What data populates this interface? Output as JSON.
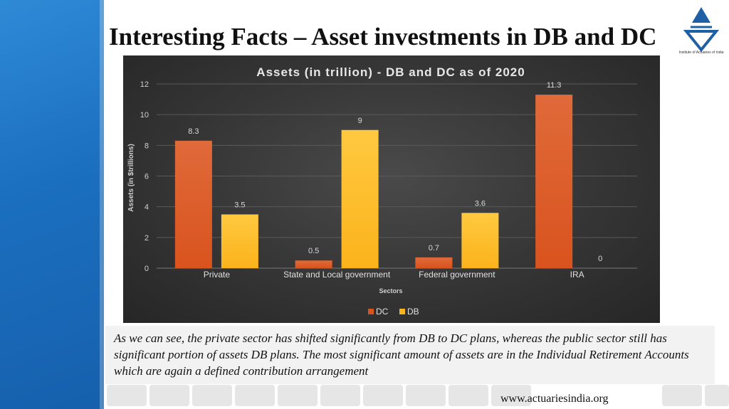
{
  "slide": {
    "title": "Interesting Facts – Asset investments in DB and DC",
    "logo_caption": "Institute of Actuaries of India",
    "caption": "As we can see, the private sector has shifted significantly from DB to DC plans, whereas the public sector still has significant portion of assets DB plans. The most significant amount of assets are in the Individual Retirement Accounts which are again a defined contribution arrangement",
    "footer_url": "www.actuariesindia.org"
  },
  "colors": {
    "dc": "#d9531e",
    "db": "#fbb31b",
    "chart_bg": "#353535",
    "accent_blue": "#1b6fbf",
    "logo_blue": "#1f5fa6"
  },
  "chart_data": {
    "type": "bar",
    "title": "Assets (in trillion) - DB and DC as of 2020",
    "xlabel": "Sectors",
    "ylabel": "Assets (in $trillions)",
    "categories": [
      "Private",
      "State and Local government",
      "Federal government",
      "IRA"
    ],
    "series": [
      {
        "name": "DC",
        "values": [
          8.3,
          0.5,
          0.7,
          11.3
        ],
        "labels": [
          "8.3",
          "0.5",
          "0.7",
          "11.3"
        ]
      },
      {
        "name": "DB",
        "values": [
          3.5,
          9,
          3.6,
          0
        ],
        "labels": [
          "3.5",
          "9",
          "3.6",
          "0"
        ]
      }
    ],
    "ylim": [
      0,
      12
    ],
    "yticks": [
      0,
      2,
      4,
      6,
      8,
      10,
      12
    ],
    "grid": true,
    "legend_position": "bottom"
  }
}
